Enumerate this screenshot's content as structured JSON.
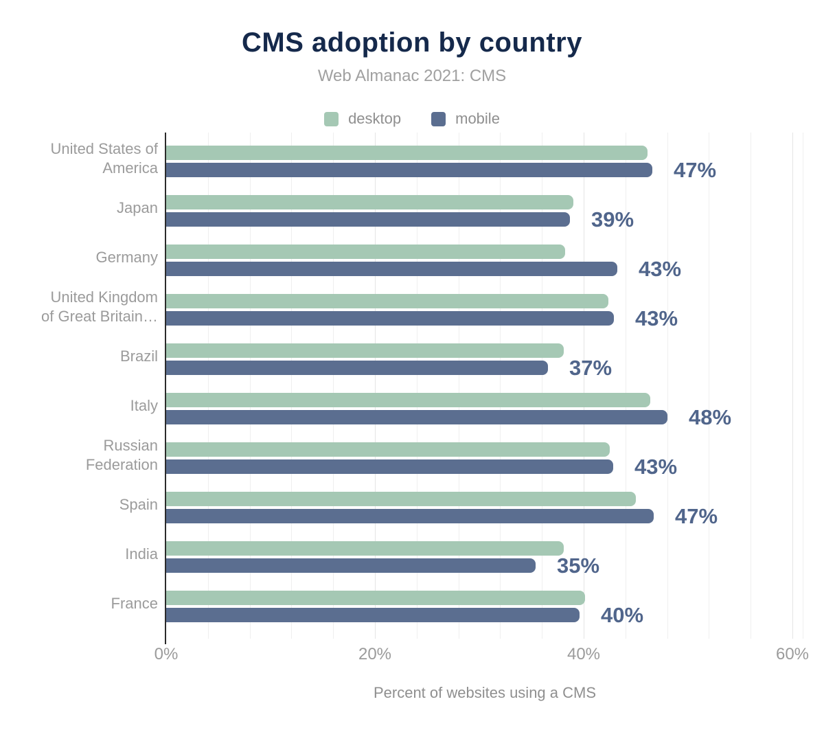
{
  "title": "CMS adoption by country",
  "subtitle": "Web Almanac 2021: CMS",
  "legend": {
    "items": [
      {
        "label": "desktop",
        "color": "#a5c8b4"
      },
      {
        "label": "mobile",
        "color": "#5b6e90"
      }
    ]
  },
  "x_axis": {
    "title": "Percent of websites using a CMS",
    "tick_labels": [
      "0%",
      "20%",
      "40%",
      "60%"
    ],
    "tick_values": [
      0,
      20,
      40,
      60
    ]
  },
  "colors": {
    "title_text": "#15294b",
    "subtitle_text": "#a0a0a0",
    "desktop_bar": "#a5c8b4",
    "mobile_bar": "#5b6e90",
    "value_label_text": "#50658b",
    "axis_line": "#2b2b2b",
    "gridline": "#efefef",
    "tick_text": "#9b9b9b"
  },
  "chart_data": {
    "type": "bar",
    "orientation": "horizontal",
    "title": "CMS adoption by country",
    "subtitle": "Web Almanac 2021: CMS",
    "xlabel": "Percent of websites using a CMS",
    "ylabel": "",
    "xlim": [
      0,
      60
    ],
    "grid": true,
    "grid_minor_step_pct": 4,
    "legend_position": "top",
    "categories": [
      "United States of\nAmerica",
      "Japan",
      "Germany",
      "United Kingdom\nof Great Britain…",
      "Brazil",
      "Italy",
      "Russian\nFederation",
      "Spain",
      "India",
      "France"
    ],
    "series": [
      {
        "name": "desktop",
        "color": "#a5c8b4",
        "values": [
          46.1,
          39.0,
          38.2,
          42.4,
          38.1,
          46.4,
          42.5,
          45.0,
          38.1,
          40.1
        ]
      },
      {
        "name": "mobile",
        "color": "#5b6e90",
        "values": [
          46.6,
          38.7,
          43.2,
          42.9,
          36.6,
          48.0,
          42.8,
          46.7,
          35.4,
          39.6
        ]
      }
    ],
    "data_labels": {
      "labels_series": "mobile",
      "values": [
        "47%",
        "39%",
        "43%",
        "43%",
        "37%",
        "48%",
        "43%",
        "47%",
        "35%",
        "40%"
      ]
    }
  }
}
